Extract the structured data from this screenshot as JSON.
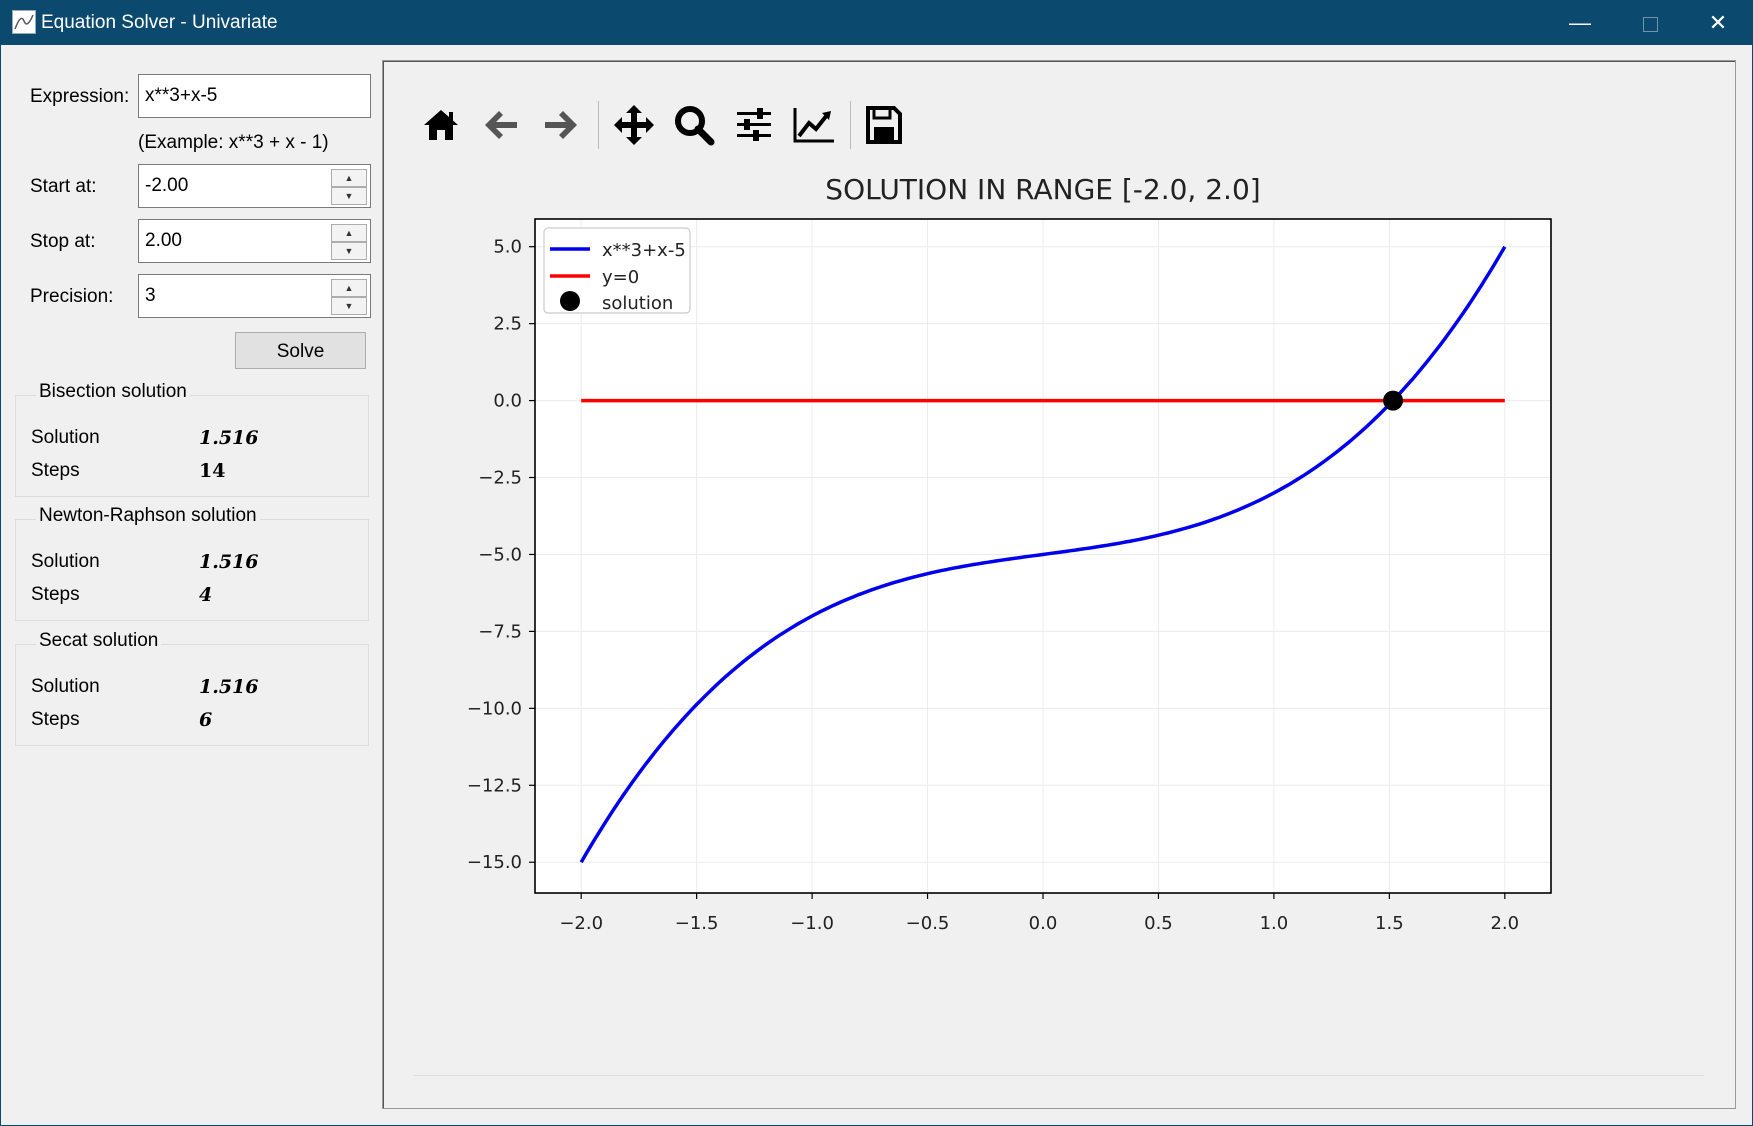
{
  "window": {
    "title": "Equation Solver - Univariate"
  },
  "form": {
    "expression_label": "Expression:",
    "expression_value": "x**3+x-5",
    "example_hint": "(Example: x**3 + x - 1)",
    "start_label": "Start at:",
    "start_value": "-2.00",
    "stop_label": "Stop at:",
    "stop_value": "2.00",
    "precision_label": "Precision:",
    "precision_value": "3",
    "solve_label": "Solve"
  },
  "results": [
    {
      "title": "Bisection solution",
      "solution_label": "Solution",
      "solution": "1.516",
      "steps_label": "Steps",
      "steps": "14"
    },
    {
      "title": "Newton-Raphson solution",
      "solution_label": "Solution",
      "solution": "1.516",
      "steps_label": "Steps",
      "steps": "4"
    },
    {
      "title": "Secat solution",
      "solution_label": "Solution",
      "solution": "1.516",
      "steps_label": "Steps",
      "steps": "6"
    }
  ],
  "toolbar": {
    "icons": [
      "home-icon",
      "back-arrow-icon",
      "forward-arrow-icon",
      "pan-icon",
      "zoom-icon",
      "subplots-config-icon",
      "edit-axis-icon",
      "save-icon"
    ]
  },
  "colors": {
    "titlebar": "#0b4a6e",
    "curve": "#0000ee",
    "zero_line": "#ff0000",
    "solution_marker": "#000000"
  },
  "chart_data": {
    "type": "line",
    "title": "SOLUTION IN RANGE [-2.0, 2.0]",
    "xlabel": "",
    "ylabel": "",
    "xlim": [
      -2.2,
      2.2
    ],
    "ylim": [
      -16.0,
      5.9
    ],
    "xticks": [
      -2.0,
      -1.5,
      -1.0,
      -0.5,
      0.0,
      0.5,
      1.0,
      1.5,
      2.0
    ],
    "xtick_labels": [
      "−2.0",
      "−1.5",
      "−1.0",
      "−0.5",
      "0.0",
      "0.5",
      "1.0",
      "1.5",
      "2.0"
    ],
    "yticks": [
      5.0,
      2.5,
      0.0,
      -2.5,
      -5.0,
      -7.5,
      -10.0,
      -12.5,
      -15.0
    ],
    "ytick_labels": [
      "5.0",
      "2.5",
      "0.0",
      "−2.5",
      "−5.0",
      "−7.5",
      "−10.0",
      "−12.5",
      "−15.0"
    ],
    "grid": true,
    "legend_position": "top-left",
    "series": [
      {
        "name": "x**3+x-5",
        "expression": "x**3+x-5",
        "x_range": [
          -2.0,
          2.0
        ],
        "color": "#0000ee",
        "x": [
          -2.0,
          -1.5,
          -1.0,
          -0.5,
          0.0,
          0.5,
          1.0,
          1.5,
          2.0
        ],
        "y": [
          -15.0,
          -9.875,
          -7.0,
          -5.625,
          -5.0,
          -4.375,
          -3.0,
          -0.125,
          5.0
        ]
      },
      {
        "name": "y=0",
        "color": "#ff0000",
        "x": [
          -2.0,
          2.0
        ],
        "y": [
          0.0,
          0.0
        ]
      },
      {
        "name": "solution",
        "color": "#000000",
        "marker": "circle",
        "x": [
          1.516
        ],
        "y": [
          0.0
        ]
      }
    ]
  }
}
